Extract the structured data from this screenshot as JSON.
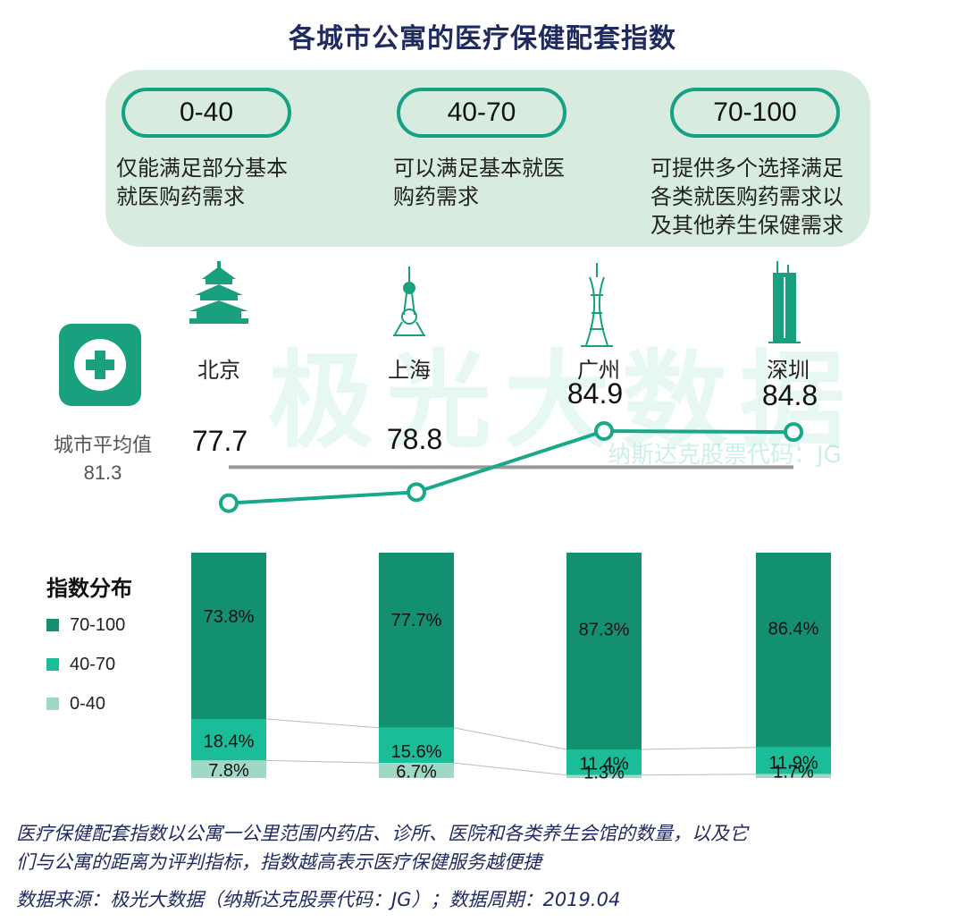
{
  "title": "各城市公寓的医疗保健配套指数",
  "ranges": [
    {
      "label": "0-40",
      "desc_lines": [
        "仅能满足部分基本",
        "就医购药需求"
      ]
    },
    {
      "label": "40-70",
      "desc_lines": [
        "可以满足基本就医",
        "购药需求"
      ]
    },
    {
      "label": "70-100",
      "desc_lines": [
        "可提供多个选择满足",
        "各类就医购药需求以",
        "及其他养生保健需求"
      ]
    }
  ],
  "watermark": {
    "main": "极光大数据",
    "sub": "纳斯达克股票代码：JG"
  },
  "average": {
    "label": "城市平均值",
    "value": "81.3"
  },
  "colors": {
    "c70_100": "#12906f",
    "c40_70": "#1bbd99",
    "c0_40": "#9fd8c4",
    "line": "#19a88a",
    "avg_line": "#999999",
    "panel": "#d7ecdf"
  },
  "chart_data": [
    {
      "type": "line",
      "categories": [
        "北京",
        "上海",
        "广州",
        "深圳"
      ],
      "values": [
        77.7,
        78.8,
        84.9,
        84.8
      ],
      "reference_line": {
        "label": "城市平均值",
        "value": 81.3
      }
    },
    {
      "type": "bar",
      "stacked": true,
      "title": "指数分布",
      "categories": [
        "北京",
        "上海",
        "广州",
        "深圳"
      ],
      "series": [
        {
          "name": "70-100",
          "values": [
            73.8,
            77.7,
            87.3,
            86.4
          ]
        },
        {
          "name": "40-70",
          "values": [
            18.4,
            15.6,
            11.4,
            11.9
          ]
        },
        {
          "name": "0-40",
          "values": [
            7.8,
            6.7,
            1.3,
            1.7
          ]
        }
      ],
      "legend": "left"
    }
  ],
  "footnote_lines": [
    "医疗保健配套指数以公寓一公里范围内药店、诊所、医院和各类养生会馆的数量，以及它",
    "们与公寓的距离为评判指标，指数越高表示医疗保健服务越便捷"
  ],
  "source": "数据来源：极光大数据（纳斯达克股票代码：JG）；数据周期：2019.04"
}
